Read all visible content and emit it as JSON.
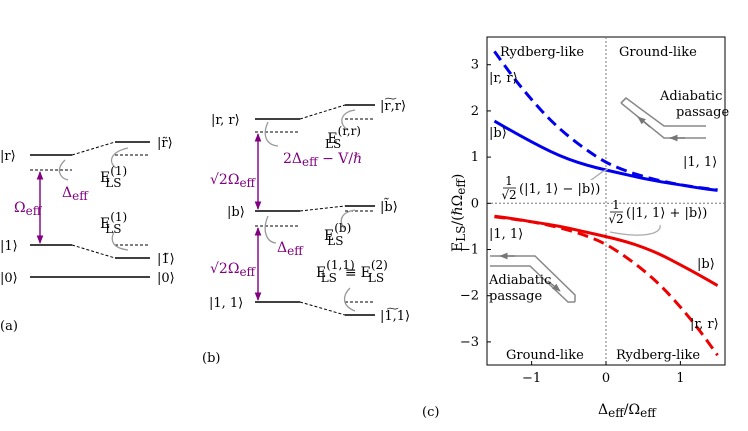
{
  "panel_a": {
    "label": "(a)",
    "states": {
      "r": "|r⟩",
      "one": "|1⟩",
      "zero": "|0⟩"
    },
    "dressed": {
      "r": "|r̃⟩",
      "one": "|1̃⟩",
      "zero": "|0⟩"
    },
    "rabi": "Ω",
    "rabi_sub": "eff",
    "detuning": "Δ",
    "detuning_sub": "eff",
    "ls_upper": "E",
    "ls_upper_sub": "LS",
    "ls_upper_sup": "(1)",
    "ls_lower": "E",
    "ls_lower_sub": "LS",
    "ls_lower_sup": "(1)"
  },
  "panel_b": {
    "label": "(b)",
    "states": {
      "rr": "|r, r⟩",
      "b": "|b⟩",
      "11": "|1, 1⟩"
    },
    "dressed": {
      "rr": "|r͠,r⟩",
      "b": "|b̃⟩",
      "11": "|1͠,1⟩"
    },
    "rabi_top": "√2Ω",
    "rabi_top_sub": "eff",
    "rabi_bottom": "√2Ω",
    "rabi_bottom_sub": "eff",
    "detuning_top": "2Δ",
    "detuning_top_sub": "eff",
    "detuning_top_rest": " − V/ℏ",
    "detuning_bottom": "Δ",
    "detuning_bottom_sub": "eff",
    "ls_rr": "E",
    "ls_rr_sub": "LS",
    "ls_rr_sup": "(r,r)",
    "ls_b": "E",
    "ls_b_sub": "LS",
    "ls_b_sup": "(b)",
    "ls_11_left": "E",
    "ls_11_left_sub": "LS",
    "ls_11_left_sup": "(1,1)",
    "ls_equiv": "≡",
    "ls_11_right": "E",
    "ls_11_right_sub": "LS",
    "ls_11_right_sup": "(2)"
  },
  "panel_c": {
    "label": "(c)",
    "ylabel": "E",
    "ylabel_sub": "LS",
    "ylabel_rest": "/(ℏΩ",
    "ylabel_rest_sub": "eff",
    "ylabel_close": ")",
    "xlabel": "Δ",
    "xlabel_sub": "eff",
    "xlabel_rest": "/Ω",
    "xlabel_rest_sub": "eff",
    "region_tl": "Rydberg-like",
    "region_tr": "Ground-like",
    "region_bl": "Ground-like",
    "region_br": "Rydberg-like",
    "lbl_rr_top": "|r, r⟩",
    "lbl_b_top": "|b⟩",
    "lbl_11_top": "|1, 1⟩",
    "lbl_11_bot": "|1, 1⟩",
    "lbl_b_bot": "|b⟩",
    "lbl_rr_bot": "|r, r⟩",
    "adiabatic_top": [
      "Adiabatic",
      "passage"
    ],
    "adiabatic_bot": [
      "Adiabatic",
      "passage"
    ],
    "ann_minus": "(|1, 1⟩ − |b⟩)",
    "ann_plus": "(|1, 1⟩ + |b⟩)",
    "ann_frac_num": "1",
    "ann_frac_den": "√2",
    "colors": {
      "blue": "#0000ee",
      "red": "#ee0000",
      "gray": "#808080",
      "purple": "#800080"
    }
  },
  "chart_data": {
    "type": "line",
    "xlabel": "Δeff/Ωeff",
    "ylabel": "ELS/(ℏΩeff)",
    "xlim": [
      -1.6,
      1.6
    ],
    "ylim": [
      -3.5,
      3.6
    ],
    "xticks": [
      -1,
      0,
      1
    ],
    "yticks": [
      -3,
      -2,
      -1,
      0,
      1,
      2,
      3
    ],
    "grid": false,
    "series": [
      {
        "name": "|r, r⟩",
        "color": "#0000ee",
        "style": "dashed",
        "x": [
          -1.5,
          -1.25,
          -1.0,
          -0.75,
          -0.5,
          -0.25,
          0.0,
          0.25,
          0.5,
          0.75,
          1.0,
          1.25,
          1.5
        ],
        "y": [
          3.29,
          2.73,
          2.24,
          1.8,
          1.44,
          1.14,
          0.88,
          0.71,
          0.58,
          0.48,
          0.4,
          0.34,
          0.29
        ]
      },
      {
        "name": "|b⟩",
        "color": "#0000ee",
        "style": "solid",
        "x": [
          -1.5,
          -1.25,
          -1.0,
          -0.75,
          -0.5,
          -0.25,
          0.0,
          0.25,
          0.5,
          0.75,
          1.0,
          1.25,
          1.5
        ],
        "y": [
          1.78,
          1.55,
          1.33,
          1.12,
          0.95,
          0.82,
          0.72,
          0.63,
          0.54,
          0.46,
          0.4,
          0.33,
          0.28
        ]
      },
      {
        "name": "|b⟩",
        "color": "#ee0000",
        "style": "solid",
        "x": [
          -1.5,
          -1.25,
          -1.0,
          -0.75,
          -0.5,
          -0.25,
          0.0,
          0.25,
          0.5,
          0.75,
          1.0,
          1.25,
          1.5
        ],
        "y": [
          -0.28,
          -0.33,
          -0.4,
          -0.46,
          -0.54,
          -0.63,
          -0.72,
          -0.82,
          -0.95,
          -1.12,
          -1.33,
          -1.55,
          -1.78
        ]
      },
      {
        "name": "|r, r⟩",
        "color": "#ee0000",
        "style": "dashed",
        "x": [
          -1.5,
          -1.25,
          -1.0,
          -0.75,
          -0.5,
          -0.25,
          0.0,
          0.25,
          0.5,
          0.75,
          1.0,
          1.25,
          1.5
        ],
        "y": [
          -0.29,
          -0.34,
          -0.4,
          -0.48,
          -0.58,
          -0.71,
          -0.88,
          -1.14,
          -1.44,
          -1.8,
          -2.24,
          -2.73,
          -3.29
        ]
      }
    ]
  }
}
